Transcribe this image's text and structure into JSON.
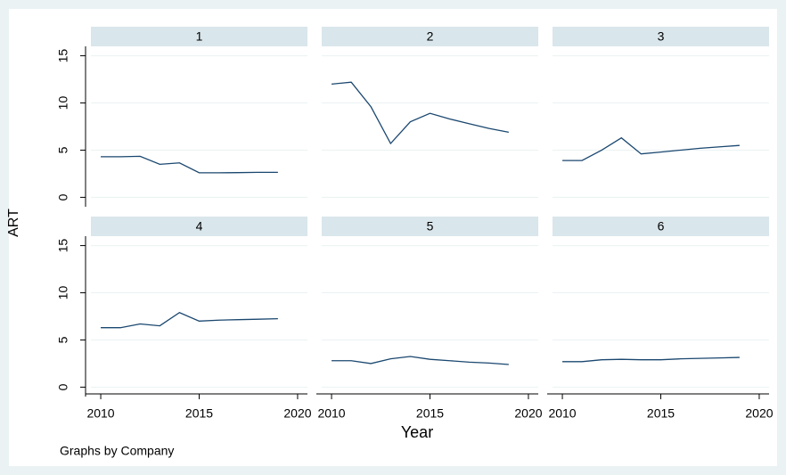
{
  "y_label": "ART",
  "x_label": "Year",
  "note": "Graphs by Company",
  "chart_data": [
    {
      "type": "line",
      "title": "1",
      "color": "#1a476f",
      "x": [
        2010,
        2011,
        2012,
        2013,
        2014,
        2015,
        2016,
        2017,
        2018,
        2019
      ],
      "values": [
        4.3,
        4.3,
        4.35,
        3.5,
        3.65,
        2.6,
        2.6,
        2.62,
        2.65,
        2.65
      ],
      "xlim": [
        2009.5,
        2020.5
      ],
      "xticks": [
        2010,
        2015,
        2020
      ],
      "ylim": [
        -1,
        16
      ],
      "yticks": [
        0,
        5,
        10,
        15
      ],
      "grid": true
    },
    {
      "type": "line",
      "title": "2",
      "color": "#1a476f",
      "x": [
        2010,
        2011,
        2012,
        2013,
        2014,
        2015,
        2016,
        2017,
        2018,
        2019
      ],
      "values": [
        12.0,
        12.2,
        9.6,
        5.7,
        8.0,
        8.9,
        8.3,
        7.8,
        7.3,
        6.9
      ],
      "xlim": [
        2009.5,
        2020.5
      ],
      "xticks": [
        2010,
        2015,
        2020
      ],
      "ylim": [
        -1,
        16
      ],
      "yticks": [
        0,
        5,
        10,
        15
      ],
      "grid": true
    },
    {
      "type": "line",
      "title": "3",
      "color": "#1a476f",
      "x": [
        2010,
        2011,
        2012,
        2013,
        2014,
        2015,
        2016,
        2017,
        2018,
        2019
      ],
      "values": [
        3.9,
        3.9,
        5.0,
        6.3,
        4.6,
        4.8,
        5.0,
        5.2,
        5.35,
        5.5
      ],
      "xlim": [
        2009.5,
        2020.5
      ],
      "xticks": [
        2010,
        2015,
        2020
      ],
      "ylim": [
        -1,
        16
      ],
      "yticks": [
        0,
        5,
        10,
        15
      ],
      "grid": true
    },
    {
      "type": "line",
      "title": "4",
      "color": "#1a476f",
      "x": [
        2010,
        2011,
        2012,
        2013,
        2014,
        2015,
        2016,
        2017,
        2018,
        2019
      ],
      "values": [
        6.3,
        6.3,
        6.7,
        6.5,
        7.9,
        7.0,
        7.1,
        7.15,
        7.2,
        7.25
      ],
      "xlim": [
        2009.5,
        2020.5
      ],
      "xticks": [
        2010,
        2015,
        2020
      ],
      "ylim": [
        -1,
        16
      ],
      "yticks": [
        0,
        5,
        10,
        15
      ],
      "grid": true
    },
    {
      "type": "line",
      "title": "5",
      "color": "#1a476f",
      "x": [
        2010,
        2011,
        2012,
        2013,
        2014,
        2015,
        2016,
        2017,
        2018,
        2019
      ],
      "values": [
        2.8,
        2.8,
        2.5,
        3.0,
        3.25,
        2.95,
        2.8,
        2.65,
        2.55,
        2.4
      ],
      "xlim": [
        2009.5,
        2020.5
      ],
      "xticks": [
        2010,
        2015,
        2020
      ],
      "ylim": [
        -1,
        16
      ],
      "yticks": [
        0,
        5,
        10,
        15
      ],
      "grid": true
    },
    {
      "type": "line",
      "title": "6",
      "color": "#1a476f",
      "x": [
        2010,
        2011,
        2012,
        2013,
        2014,
        2015,
        2016,
        2017,
        2018,
        2019
      ],
      "values": [
        2.7,
        2.7,
        2.9,
        2.95,
        2.9,
        2.9,
        3.0,
        3.05,
        3.1,
        3.15
      ],
      "xlim": [
        2009.5,
        2020.5
      ],
      "xticks": [
        2010,
        2015,
        2020
      ],
      "ylim": [
        -1,
        16
      ],
      "yticks": [
        0,
        5,
        10,
        15
      ],
      "grid": true
    }
  ]
}
